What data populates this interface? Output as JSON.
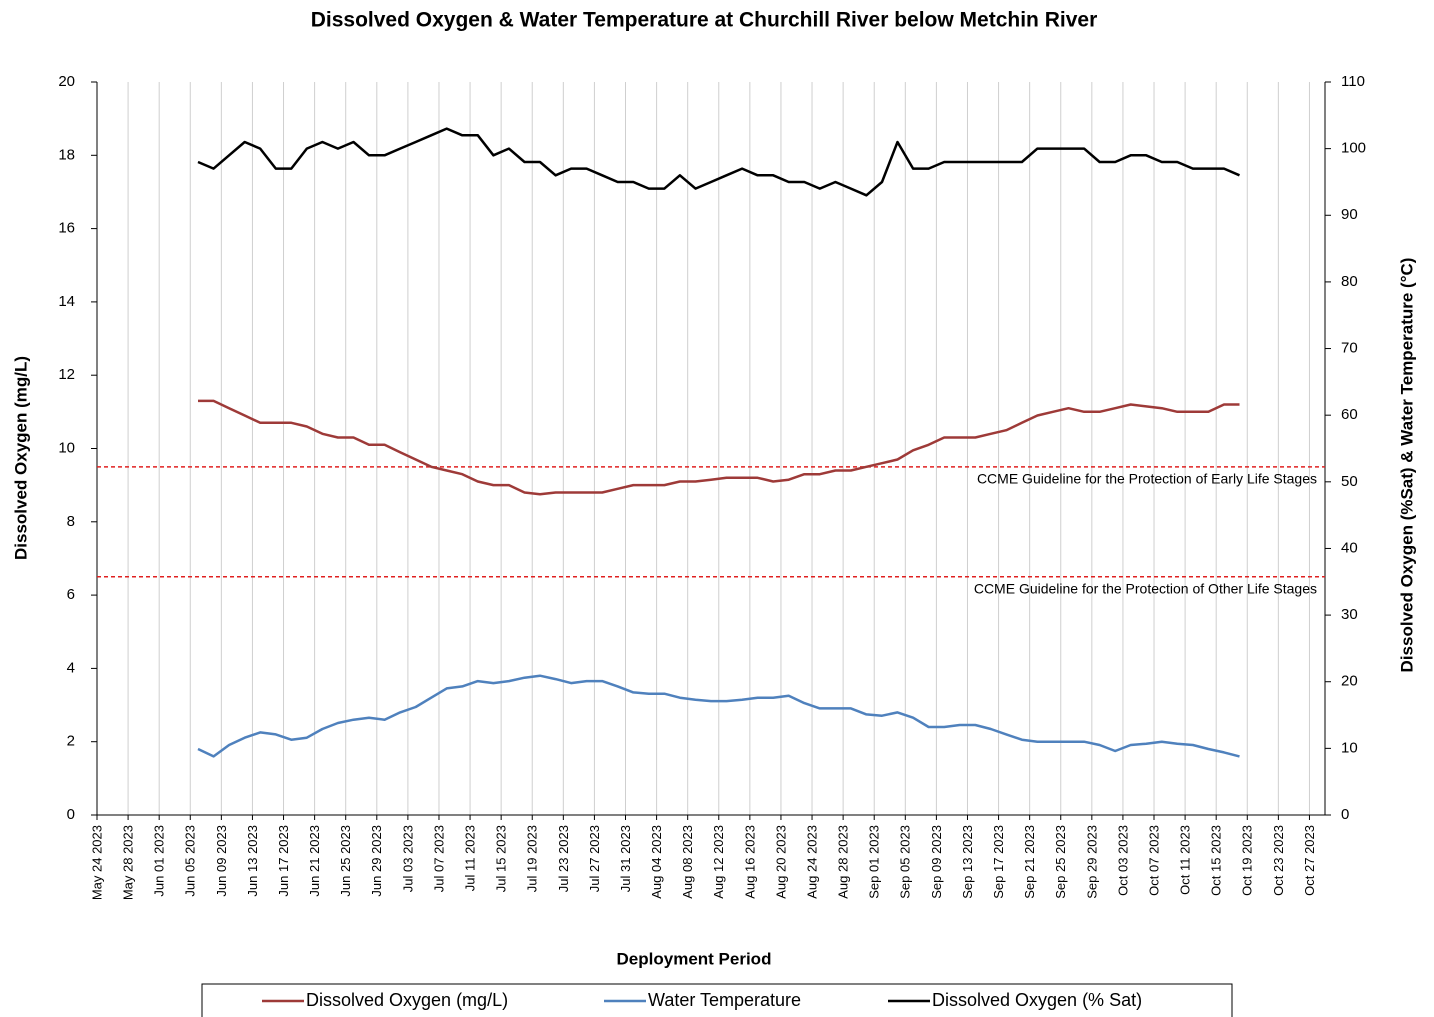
{
  "chart_data": {
    "type": "line",
    "title": "Dissolved Oxygen & Water Temperature at Churchill River below Metchin River",
    "x_label": "Deployment Period",
    "y_label": "Dissolved Oxygen (mg/L)",
    "y2_label": "Dissolved Oxygen (%Sat) & Water Temperature (°C)",
    "x": [
      "2023-06-06",
      "2023-06-08",
      "2023-06-10",
      "2023-06-12",
      "2023-06-14",
      "2023-06-16",
      "2023-06-18",
      "2023-06-20",
      "2023-06-22",
      "2023-06-24",
      "2023-06-26",
      "2023-06-28",
      "2023-06-30",
      "2023-07-02",
      "2023-07-04",
      "2023-07-06",
      "2023-07-08",
      "2023-07-10",
      "2023-07-12",
      "2023-07-14",
      "2023-07-16",
      "2023-07-18",
      "2023-07-20",
      "2023-07-22",
      "2023-07-24",
      "2023-07-26",
      "2023-07-28",
      "2023-07-30",
      "2023-08-01",
      "2023-08-03",
      "2023-08-05",
      "2023-08-07",
      "2023-08-09",
      "2023-08-11",
      "2023-08-13",
      "2023-08-15",
      "2023-08-17",
      "2023-08-19",
      "2023-08-21",
      "2023-08-23",
      "2023-08-25",
      "2023-08-27",
      "2023-08-29",
      "2023-08-31",
      "2023-09-02",
      "2023-09-04",
      "2023-09-06",
      "2023-09-08",
      "2023-09-10",
      "2023-09-12",
      "2023-09-14",
      "2023-09-16",
      "2023-09-18",
      "2023-09-20",
      "2023-09-22",
      "2023-09-24",
      "2023-09-26",
      "2023-09-28",
      "2023-09-30",
      "2023-10-02",
      "2023-10-04",
      "2023-10-06",
      "2023-10-08",
      "2023-10-10",
      "2023-10-12",
      "2023-10-14",
      "2023-10-16",
      "2023-10-18"
    ],
    "series": [
      {
        "name": "Dissolved Oxygen (mg/L)",
        "color": "#9e3a38",
        "axis": "y",
        "values": [
          11.3,
          11.3,
          11.1,
          10.9,
          10.7,
          10.7,
          10.7,
          10.6,
          10.4,
          10.3,
          10.3,
          10.1,
          10.1,
          9.9,
          9.7,
          9.5,
          9.4,
          9.3,
          9.1,
          9.0,
          9.0,
          8.8,
          8.75,
          8.8,
          8.8,
          8.8,
          8.8,
          8.9,
          9.0,
          9.0,
          9.0,
          9.1,
          9.1,
          9.15,
          9.2,
          9.2,
          9.2,
          9.1,
          9.15,
          9.3,
          9.3,
          9.4,
          9.4,
          9.5,
          9.6,
          9.7,
          9.95,
          10.1,
          10.3,
          10.3,
          10.3,
          10.4,
          10.5,
          10.7,
          10.9,
          11.0,
          11.1,
          11.0,
          11.0,
          11.1,
          11.2,
          11.15,
          11.1,
          11.0,
          11.0,
          11.0,
          11.2,
          11.2
        ]
      },
      {
        "name": "Water Temperature",
        "color": "#4f81bd",
        "axis": "y2",
        "values": [
          9.9,
          8.8,
          10.5,
          11.6,
          12.4,
          12.1,
          11.3,
          11.6,
          12.9,
          13.8,
          14.3,
          14.6,
          14.3,
          15.4,
          16.2,
          17.6,
          19.0,
          19.3,
          20.1,
          19.8,
          20.1,
          20.6,
          20.9,
          20.4,
          19.8,
          20.1,
          20.1,
          19.3,
          18.4,
          18.2,
          18.2,
          17.6,
          17.3,
          17.1,
          17.1,
          17.3,
          17.6,
          17.6,
          17.9,
          16.8,
          16.0,
          16.0,
          16.0,
          15.1,
          14.9,
          15.4,
          14.6,
          13.2,
          13.2,
          13.5,
          13.5,
          12.9,
          12.1,
          11.3,
          11.0,
          11.0,
          11.0,
          11.0,
          10.5,
          9.6,
          10.5,
          10.7,
          11.0,
          10.7,
          10.5,
          9.9,
          9.4,
          8.8
        ]
      },
      {
        "name": "Dissolved Oxygen (% Sat)",
        "color": "#000000",
        "axis": "y2",
        "values": [
          98,
          97,
          99,
          101,
          100,
          97,
          97,
          100,
          101,
          100,
          101,
          99,
          99,
          100,
          101,
          102,
          103,
          102,
          102,
          99,
          100,
          98,
          98,
          96,
          97,
          97,
          96,
          95,
          95,
          94,
          94,
          96,
          94,
          95,
          96,
          97,
          96,
          96,
          95,
          95,
          94,
          95,
          94,
          93,
          95,
          101,
          97,
          97,
          98,
          98,
          98,
          98,
          98,
          98,
          100,
          100,
          100,
          100,
          98,
          98,
          99,
          99,
          98,
          98,
          97,
          97,
          97,
          96
        ]
      }
    ],
    "xlim": [
      "2023-05-24",
      "2023-10-29"
    ],
    "xticks": [
      {
        "value": "2023-05-24",
        "label": "May 24 2023"
      },
      {
        "value": "2023-05-28",
        "label": "May 28 2023"
      },
      {
        "value": "2023-06-01",
        "label": "Jun 01 2023"
      },
      {
        "value": "2023-06-05",
        "label": "Jun 05 2023"
      },
      {
        "value": "2023-06-09",
        "label": "Jun 09 2023"
      },
      {
        "value": "2023-06-13",
        "label": "Jun 13 2023"
      },
      {
        "value": "2023-06-17",
        "label": "Jun 17 2023"
      },
      {
        "value": "2023-06-21",
        "label": "Jun 21 2023"
      },
      {
        "value": "2023-06-25",
        "label": "Jun 25 2023"
      },
      {
        "value": "2023-06-29",
        "label": "Jun 29 2023"
      },
      {
        "value": "2023-07-03",
        "label": "Jul 03 2023"
      },
      {
        "value": "2023-07-07",
        "label": "Jul 07 2023"
      },
      {
        "value": "2023-07-11",
        "label": "Jul 11 2023"
      },
      {
        "value": "2023-07-15",
        "label": "Jul 15 2023"
      },
      {
        "value": "2023-07-19",
        "label": "Jul 19 2023"
      },
      {
        "value": "2023-07-23",
        "label": "Jul 23 2023"
      },
      {
        "value": "2023-07-27",
        "label": "Jul 27 2023"
      },
      {
        "value": "2023-07-31",
        "label": "Jul 31 2023"
      },
      {
        "value": "2023-08-04",
        "label": "Aug 04 2023"
      },
      {
        "value": "2023-08-08",
        "label": "Aug 08 2023"
      },
      {
        "value": "2023-08-12",
        "label": "Aug 12 2023"
      },
      {
        "value": "2023-08-16",
        "label": "Aug 16 2023"
      },
      {
        "value": "2023-08-20",
        "label": "Aug 20 2023"
      },
      {
        "value": "2023-08-24",
        "label": "Aug 24 2023"
      },
      {
        "value": "2023-08-28",
        "label": "Aug 28 2023"
      },
      {
        "value": "2023-09-01",
        "label": "Sep 01 2023"
      },
      {
        "value": "2023-09-05",
        "label": "Sep 05 2023"
      },
      {
        "value": "2023-09-09",
        "label": "Sep 09 2023"
      },
      {
        "value": "2023-09-13",
        "label": "Sep 13 2023"
      },
      {
        "value": "2023-09-17",
        "label": "Sep 17 2023"
      },
      {
        "value": "2023-09-21",
        "label": "Sep 21 2023"
      },
      {
        "value": "2023-09-25",
        "label": "Sep 25 2023"
      },
      {
        "value": "2023-09-29",
        "label": "Sep 29 2023"
      },
      {
        "value": "2023-10-03",
        "label": "Oct 03 2023"
      },
      {
        "value": "2023-10-07",
        "label": "Oct 07 2023"
      },
      {
        "value": "2023-10-11",
        "label": "Oct 11 2023"
      },
      {
        "value": "2023-10-15",
        "label": "Oct 15 2023"
      },
      {
        "value": "2023-10-19",
        "label": "Oct 19 2023"
      },
      {
        "value": "2023-10-23",
        "label": "Oct 23 2023"
      },
      {
        "value": "2023-10-27",
        "label": "Oct 27 2023"
      }
    ],
    "ylim": [
      0,
      20
    ],
    "yticks": [
      0,
      2,
      4,
      6,
      8,
      10,
      12,
      14,
      16,
      18,
      20
    ],
    "y2lim": [
      0,
      110
    ],
    "y2ticks": [
      0,
      10,
      20,
      30,
      40,
      50,
      60,
      70,
      80,
      90,
      100,
      110
    ],
    "grid": true,
    "legend": "bottom",
    "hlines": [
      {
        "value": 9.5,
        "label": "CCME Guideline for the Protection of Early Life Stages",
        "color": "#e02020"
      },
      {
        "value": 6.5,
        "label": "CCME Guideline for the Protection of Other Life Stages",
        "color": "#e02020"
      }
    ]
  }
}
